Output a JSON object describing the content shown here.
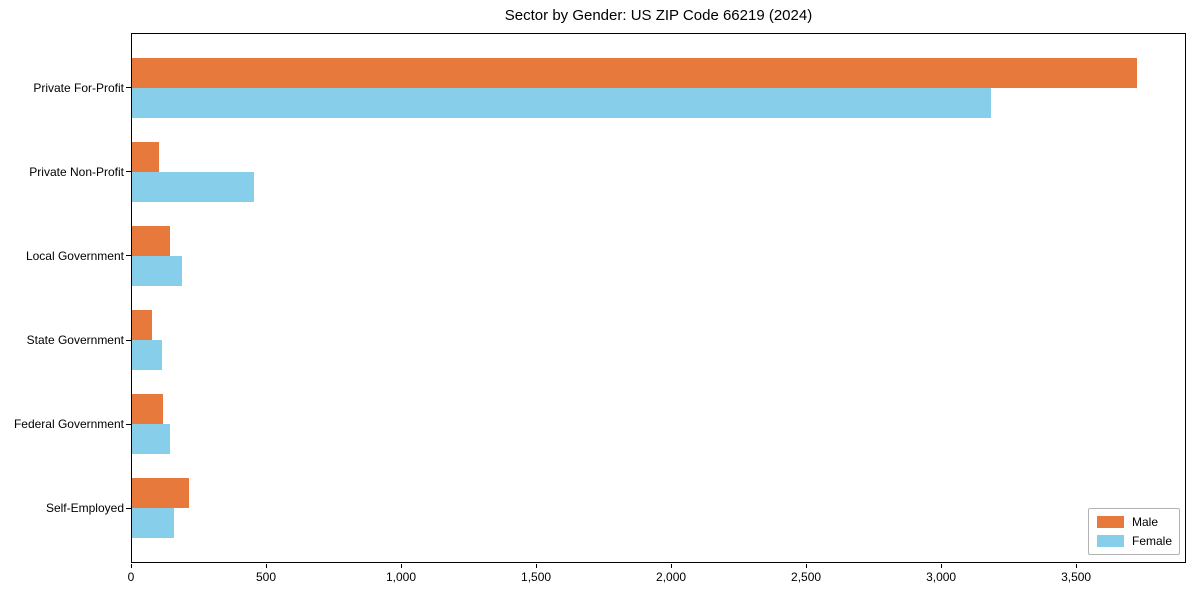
{
  "chart_data": {
    "type": "bar",
    "orientation": "horizontal",
    "title": "Sector by Gender: US ZIP Code 66219 (2024)",
    "categories": [
      "Private For-Profit",
      "Private Non-Profit",
      "Local Government",
      "State Government",
      "Federal Government",
      "Self-Employed"
    ],
    "series": [
      {
        "name": "Male",
        "color": "#e8793d",
        "values": [
          3720,
          100,
          140,
          75,
          115,
          210
        ]
      },
      {
        "name": "Female",
        "color": "#87ceeb",
        "values": [
          3180,
          450,
          185,
          110,
          140,
          155
        ]
      }
    ],
    "xlabel": "",
    "ylabel": "",
    "xlim": [
      0,
      3907
    ],
    "xticks": [
      0,
      500,
      1000,
      1500,
      2000,
      2500,
      3000,
      3500
    ],
    "xtick_labels": [
      "0",
      "500",
      "1,000",
      "1,500",
      "2,000",
      "2,500",
      "3,000",
      "3,500"
    ],
    "grid": false,
    "legend": {
      "position": "lower-right",
      "entries": [
        "Male",
        "Female"
      ]
    },
    "colors": {
      "male": "#e8793d",
      "female": "#87ceeb",
      "frame": "#000000",
      "legend_border": "#b3b3b3"
    }
  }
}
